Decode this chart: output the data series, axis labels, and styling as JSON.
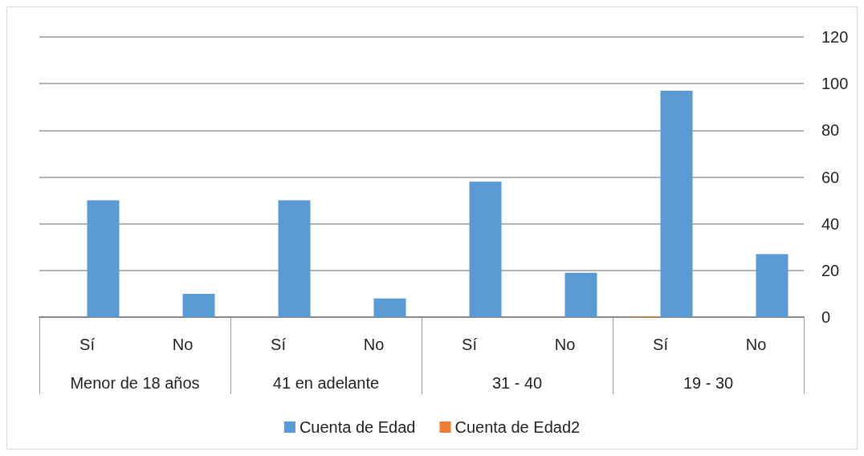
{
  "chart_data": {
    "type": "bar",
    "categories": [
      "Sí",
      "No",
      "Sí",
      "No",
      "Sí",
      "No",
      "Sí",
      "No"
    ],
    "annotations": [
      "Menor de 18 años",
      "41 en adelante",
      "31 - 40",
      "19 - 30"
    ],
    "series": [
      {
        "name": "Cuenta de Edad",
        "color": "#5b9bd5",
        "values": [
          50,
          10,
          50,
          8,
          58,
          19,
          97,
          27
        ]
      },
      {
        "name": "Cuenta de Edad2",
        "color": "#ed7d31",
        "values": [
          null,
          null,
          null,
          null,
          null,
          null,
          0.3,
          null
        ]
      }
    ],
    "ylim": [
      0,
      120
    ],
    "yticks": [
      0,
      20,
      40,
      60,
      80,
      100,
      120
    ],
    "grid": "y",
    "legend": "bottom"
  }
}
